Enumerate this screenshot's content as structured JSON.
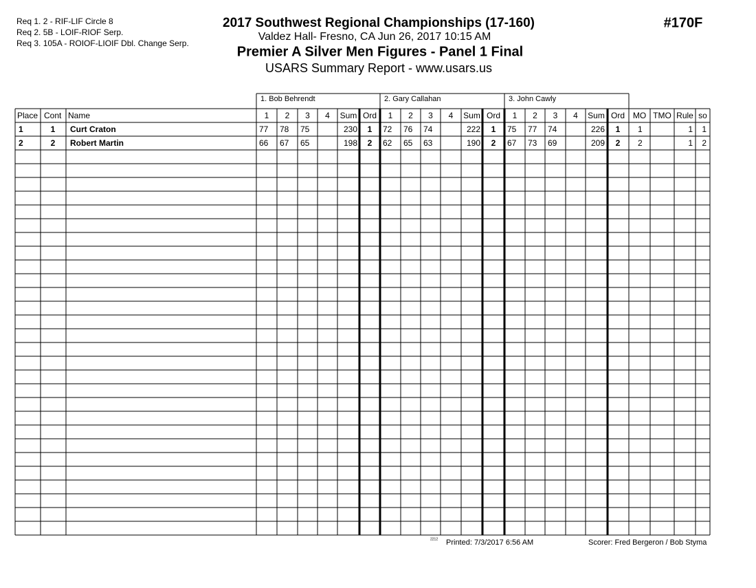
{
  "header": {
    "requirements": [
      "Req  1.  2 - RIF-LIF Circle 8",
      "Req  2.  5B - LOIF-RIOF Serp.",
      "Req  3.  105A  - ROIOF-LIOIF Dbl. Change Serp."
    ],
    "title": "2017 Southwest Regional Championships (17-160)",
    "venue": "Valdez Hall- Fresno, CA  Jun 26, 2017  10:15 AM",
    "event": "Premier A Silver Men Figures - Panel 1 Final",
    "subtitle": "USARS Summary Report - www.usars.us",
    "event_number": "#170F"
  },
  "table": {
    "judges": [
      "1.  Bob Behrendt",
      "2.  Gary Callahan",
      "3.  John Cawly"
    ],
    "lead_columns": [
      "Place",
      "Cont",
      "Name"
    ],
    "judge_columns": [
      "1",
      "2",
      "3",
      "4",
      "Sum",
      "Ord"
    ],
    "tail_columns": [
      "MO",
      "TMO",
      "Rule",
      "so"
    ],
    "rows": [
      {
        "place": 1,
        "cont": 1,
        "name": "Curt Craton",
        "judges": [
          {
            "scores": [
              77,
              78,
              75
            ],
            "sum": 230,
            "ord": 1
          },
          {
            "scores": [
              72,
              76,
              74
            ],
            "sum": 222,
            "ord": 1
          },
          {
            "scores": [
              75,
              77,
              74
            ],
            "sum": 226,
            "ord": 1
          }
        ],
        "mo": 1,
        "rule": 1,
        "so": 1
      },
      {
        "place": 2,
        "cont": 2,
        "name": "Robert Martin",
        "judges": [
          {
            "scores": [
              66,
              67,
              65
            ],
            "sum": 198,
            "ord": 2
          },
          {
            "scores": [
              62,
              65,
              63
            ],
            "sum": 190,
            "ord": 2
          },
          {
            "scores": [
              67,
              73,
              69
            ],
            "sum": 209,
            "ord": 2
          }
        ],
        "mo": 2,
        "rule": 1,
        "so": 2
      }
    ]
  },
  "footer": {
    "code": "2212",
    "printed": "Printed:  7/3/2017  6:56 AM",
    "scorer": "Scorer:   Fred Bergeron / Bob Styma"
  }
}
